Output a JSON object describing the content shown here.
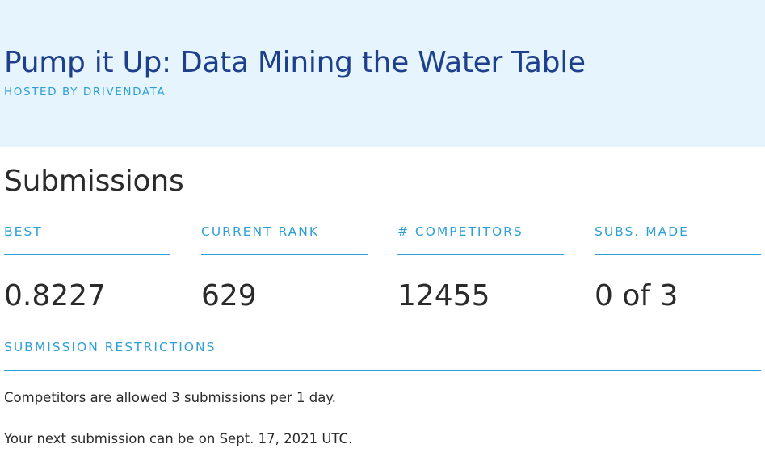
{
  "hero": {
    "title": "Pump it Up: Data Mining the Water Table",
    "host": "HOSTED BY DRIVENDATA"
  },
  "submissions": {
    "title": "Submissions",
    "stats": [
      {
        "label": "BEST",
        "value": "0.8227"
      },
      {
        "label": "CURRENT RANK",
        "value": "629"
      },
      {
        "label": "# COMPETITORS",
        "value": "12455"
      },
      {
        "label": "SUBS. MADE",
        "value": "0 of 3"
      }
    ]
  },
  "restrictions": {
    "label": "SUBMISSION RESTRICTIONS",
    "allowed_text": "Competitors are allowed 3 submissions per 1 day.",
    "next_text": "Your next submission can be on Sept. 17, 2021 UTC."
  },
  "colors": {
    "hero_background": "#e6f5fd",
    "title_blue": "#1e3f8c",
    "accent_blue": "#2e9fd6",
    "text": "#2a2a2a"
  }
}
